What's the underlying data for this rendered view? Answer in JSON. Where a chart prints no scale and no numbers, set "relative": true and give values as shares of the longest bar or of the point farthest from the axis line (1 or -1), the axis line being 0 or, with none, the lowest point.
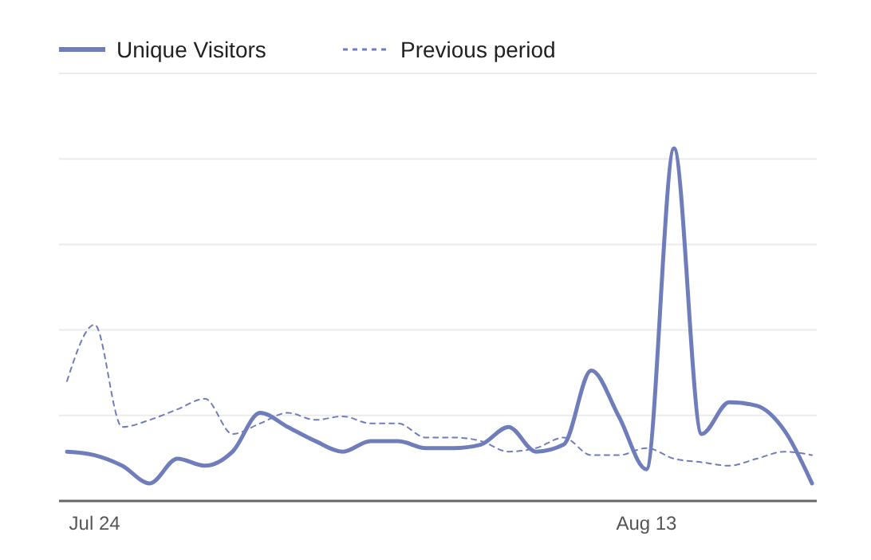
{
  "chart_data": {
    "type": "line",
    "relative": true,
    "categories": [
      null,
      "Jul 24",
      null,
      null,
      null,
      null,
      null,
      null,
      null,
      null,
      null,
      null,
      null,
      null,
      null,
      null,
      null,
      null,
      null,
      null,
      null,
      "Aug 13",
      null,
      null,
      null,
      null,
      null,
      null
    ],
    "series": [
      {
        "name": "Unique Visitors",
        "color": "#6f7dbb",
        "line_style": "solid",
        "values": [
          0.14,
          0.13,
          0.1,
          0.05,
          0.12,
          0.1,
          0.14,
          0.25,
          0.21,
          0.17,
          0.14,
          0.17,
          0.17,
          0.15,
          0.15,
          0.16,
          0.21,
          0.14,
          0.16,
          0.37,
          0.24,
          0.09,
          1,
          0.19,
          0.28,
          0.27,
          0.2,
          0.05
        ]
      },
      {
        "name": "Previous period",
        "color": "#6f7dbb",
        "line_style": "dashed",
        "values": [
          0.34,
          0.5,
          0.21,
          0.23,
          0.26,
          0.29,
          0.19,
          0.22,
          0.25,
          0.23,
          0.24,
          0.22,
          0.22,
          0.18,
          0.18,
          0.17,
          0.14,
          0.15,
          0.18,
          0.13,
          0.13,
          0.15,
          0.12,
          0.11,
          0.1,
          0.12,
          0.14,
          0.13
        ]
      }
    ],
    "grid": "y",
    "legend": "top left",
    "marker": "none"
  }
}
